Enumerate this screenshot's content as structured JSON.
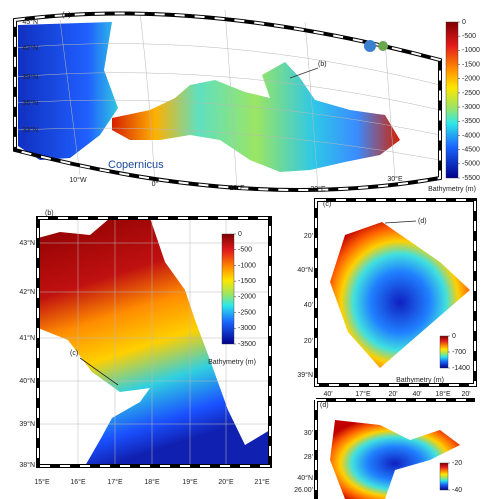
{
  "panel_a": {
    "label": "(a)",
    "callout": "(b)",
    "logo": "Copernicus",
    "lat_labels": [
      "45°N",
      "42°N",
      "39°N",
      "36°N",
      "33°N"
    ],
    "lon_labels": [
      "10°W",
      "0°",
      "10°E",
      "20°E",
      "30°E"
    ],
    "colorbar": {
      "ticks": [
        0,
        -500,
        -1000,
        -1500,
        -2000,
        -2500,
        -3000,
        -3500,
        -4000,
        -4500,
        -5000,
        -5500
      ],
      "title": "Bathymetry (m)"
    }
  },
  "panel_b": {
    "label": "(b)",
    "callout": "(c)",
    "lat_labels": [
      "43°N",
      "42°N",
      "41°N",
      "40°N",
      "39°N",
      "38°N"
    ],
    "lon_labels": [
      "15°E",
      "16°E",
      "17°E",
      "18°E",
      "19°E",
      "20°E",
      "21°E"
    ],
    "colorbar": {
      "ticks": [
        0,
        -500,
        -1000,
        -1500,
        -2000,
        -2500,
        -3000,
        -3500
      ],
      "title": "Bathymetry (m)"
    }
  },
  "panel_c": {
    "label": "(c)",
    "callout": "(d)",
    "lat_labels": [
      "20'",
      "40°N",
      "40'",
      "20'",
      "39°N"
    ],
    "lon_labels": [
      "40'",
      "17°E",
      "20'",
      "40'",
      "18°E",
      "20'"
    ],
    "colorbar": {
      "ticks": [
        0,
        -700,
        -1400
      ],
      "title": "Bathymetry (m)"
    }
  },
  "panel_d": {
    "label": "(d)",
    "lat_labels": [
      "30'",
      "28'",
      "40°N",
      "26.00'"
    ],
    "colorbar": {
      "ticks": [
        -20,
        -40
      ]
    }
  }
}
